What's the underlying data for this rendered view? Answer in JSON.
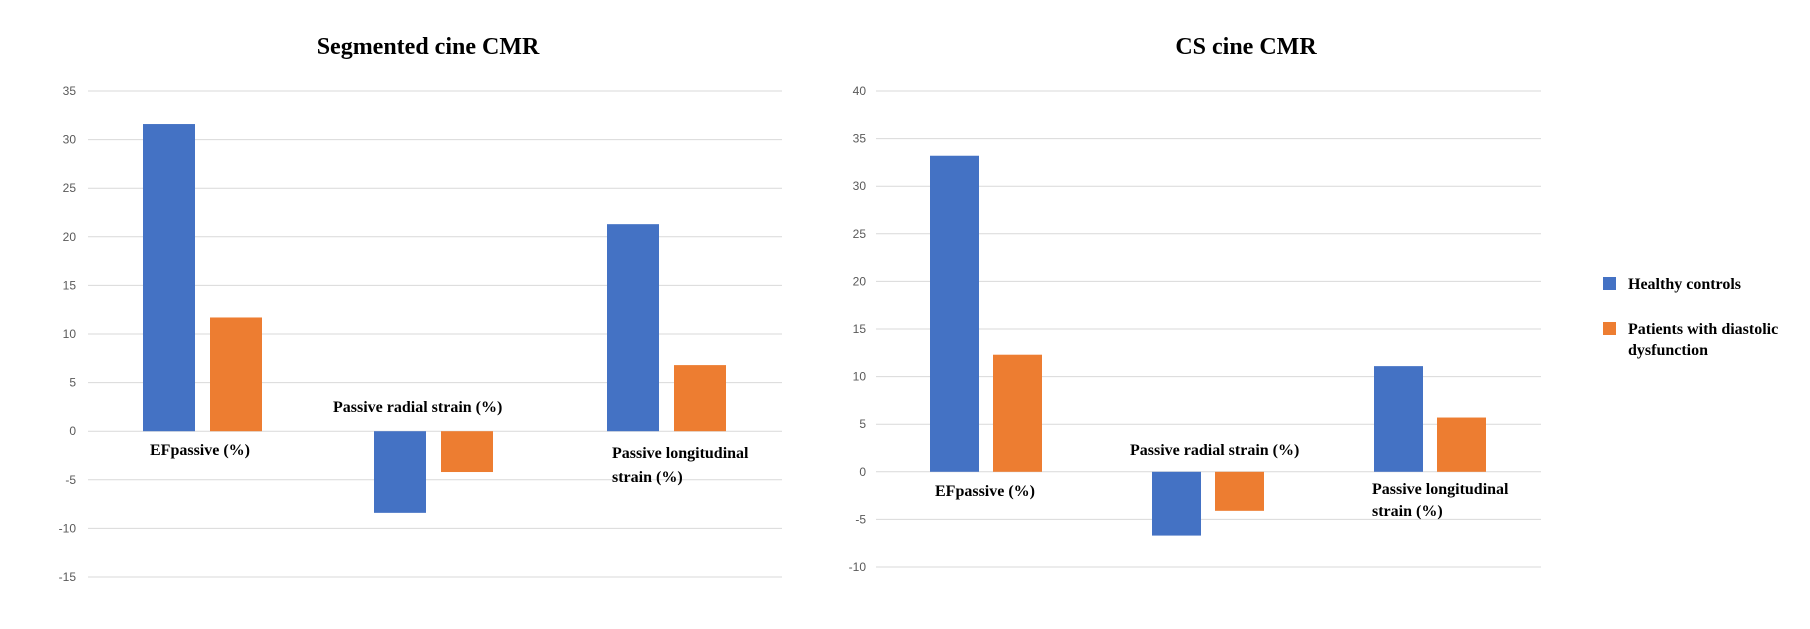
{
  "colors": {
    "healthy": "#4472C4",
    "patients": "#ED7D31",
    "grid": "#d9d9d9"
  },
  "legend": {
    "healthy_label": "Healthy controls",
    "patients_label_line1": "Patients with diastolic",
    "patients_label_line2": "dysfunction"
  },
  "chart_data": [
    {
      "type": "bar",
      "title": "Segmented cine CMR",
      "categories": [
        "EFpassive (%)",
        "Passive radial  strain (%)",
        "Passive longitudinal strain  (%)"
      ],
      "category_lines": [
        [
          "EFpassive (%)"
        ],
        [
          "Passive radial  strain (%)"
        ],
        [
          "Passive longitudinal",
          "strain  (%)"
        ]
      ],
      "series": [
        {
          "name": "Healthy controls",
          "values": [
            31.6,
            -8.4,
            21.3
          ]
        },
        {
          "name": "Patients with diastolic dysfunction",
          "values": [
            11.7,
            -4.2,
            6.8
          ]
        }
      ],
      "ylim": [
        -15,
        35
      ],
      "yticks": [
        35,
        30,
        25,
        20,
        15,
        10,
        5,
        0,
        -5,
        -10,
        -15
      ],
      "grid": true,
      "xlabel": "",
      "ylabel": ""
    },
    {
      "type": "bar",
      "title": "CS cine CMR",
      "categories": [
        "EFpassive (%)",
        "Passive radial  strain (%)",
        "Passive longitudinal strain  (%)"
      ],
      "category_lines": [
        [
          "EFpassive (%)"
        ],
        [
          "Passive radial  strain (%)"
        ],
        [
          "Passive longitudinal",
          "strain  (%)"
        ]
      ],
      "series": [
        {
          "name": "Healthy controls",
          "values": [
            33.2,
            -6.7,
            11.1
          ]
        },
        {
          "name": "Patients with diastolic dysfunction",
          "values": [
            12.3,
            -4.1,
            5.7
          ]
        }
      ],
      "ylim": [
        -10,
        40
      ],
      "yticks": [
        40,
        35,
        30,
        25,
        20,
        15,
        10,
        5,
        0,
        -5,
        -10
      ],
      "grid": true,
      "xlabel": "",
      "ylabel": "",
      "legend_position": "right"
    }
  ]
}
